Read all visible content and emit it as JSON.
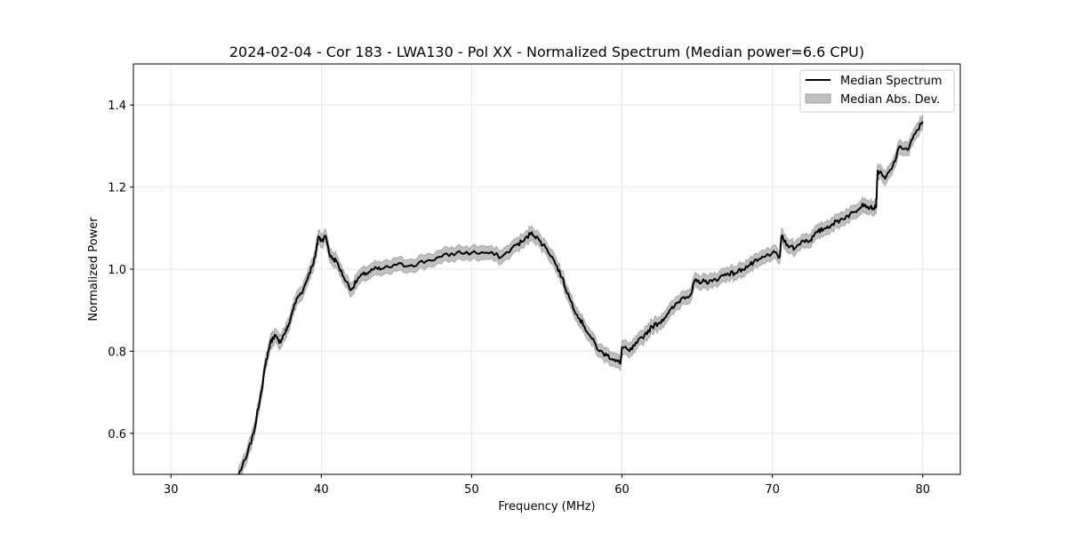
{
  "chart_data": {
    "type": "line",
    "title": "2024-02-04 - Cor 183 - LWA130 - Pol XX - Normalized Spectrum (Median power=6.6 CPU)",
    "xlabel": "Frequency (MHz)",
    "ylabel": "Normalized Power",
    "xlim": [
      27.5,
      82.5
    ],
    "ylim": [
      0.5,
      1.5
    ],
    "xticks": [
      30,
      40,
      50,
      60,
      70,
      80
    ],
    "yticks": [
      0.6,
      0.8,
      1.0,
      1.2,
      1.4
    ],
    "xtick_labels": [
      "30",
      "40",
      "50",
      "60",
      "70",
      "80"
    ],
    "ytick_labels": [
      "0.6",
      "0.8",
      "1.0",
      "1.2",
      "1.4"
    ],
    "grid": true,
    "legend_placement": "top-right",
    "legend": [
      "Median Spectrum",
      "Median Abs. Dev."
    ],
    "colors": {
      "line": "#000000",
      "band": "#c0c0c0",
      "band_edge": "#a0a0a0",
      "grid": "#e6e6e6"
    },
    "series": [
      {
        "name": "Median Spectrum",
        "x": [
          34.5,
          35.0,
          35.5,
          36.0,
          36.3,
          36.6,
          36.9,
          37.2,
          37.5,
          37.8,
          38.1,
          38.4,
          38.8,
          39.2,
          39.6,
          39.8,
          40.0,
          40.3,
          40.6,
          41.0,
          41.5,
          42.0,
          42.5,
          43.0,
          43.5,
          44.0,
          45.0,
          46.0,
          47.0,
          48.0,
          49.0,
          50.0,
          51.0,
          52.0,
          53.0,
          53.5,
          54.0,
          54.5,
          55.0,
          55.5,
          56.0,
          56.5,
          57.0,
          57.5,
          58.0,
          58.5,
          59.0,
          59.5,
          59.9,
          60.0,
          60.5,
          61.0,
          61.5,
          62.0,
          62.5,
          63.0,
          63.5,
          64.0,
          64.6,
          64.8,
          65.0,
          65.5,
          66.0,
          66.5,
          67.0,
          67.5,
          68.0,
          68.5,
          69.0,
          69.5,
          70.0,
          70.5,
          70.6,
          71.0,
          71.5,
          72.0,
          72.5,
          73.0,
          73.5,
          74.0,
          74.5,
          75.0,
          75.5,
          76.0,
          76.5,
          76.9,
          77.0,
          77.5,
          78.0,
          78.5,
          79.0,
          79.5,
          80.0
        ],
        "values": [
          0.5,
          0.54,
          0.6,
          0.7,
          0.77,
          0.82,
          0.84,
          0.82,
          0.84,
          0.86,
          0.9,
          0.93,
          0.95,
          0.99,
          1.03,
          1.08,
          1.07,
          1.08,
          1.03,
          1.02,
          0.98,
          0.95,
          0.98,
          0.99,
          1.0,
          1.0,
          1.01,
          1.01,
          1.02,
          1.03,
          1.04,
          1.04,
          1.04,
          1.03,
          1.06,
          1.07,
          1.09,
          1.07,
          1.05,
          1.02,
          0.98,
          0.93,
          0.89,
          0.86,
          0.83,
          0.8,
          0.79,
          0.78,
          0.77,
          0.81,
          0.8,
          0.82,
          0.84,
          0.86,
          0.87,
          0.89,
          0.91,
          0.93,
          0.94,
          0.97,
          0.97,
          0.97,
          0.97,
          0.98,
          0.99,
          0.99,
          1.0,
          1.01,
          1.02,
          1.03,
          1.04,
          1.03,
          1.08,
          1.06,
          1.05,
          1.07,
          1.07,
          1.09,
          1.1,
          1.11,
          1.12,
          1.13,
          1.14,
          1.16,
          1.15,
          1.15,
          1.24,
          1.22,
          1.25,
          1.3,
          1.29,
          1.33,
          1.36
        ],
        "mad": 0.015
      }
    ]
  }
}
